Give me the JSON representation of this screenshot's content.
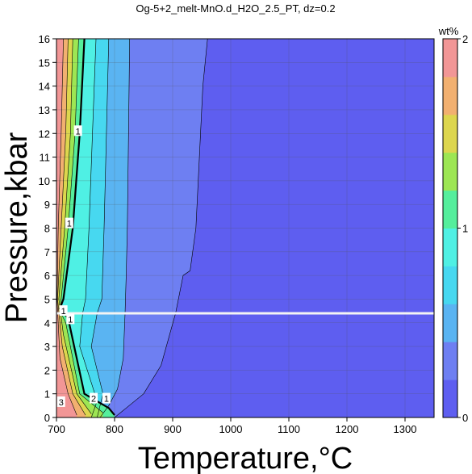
{
  "chart_data": {
    "type": "heatmap",
    "title": "Og-5+2_melt-MnO.d_H2O_2.5_PT, dz=0.2",
    "xlabel": "Temperature,°C",
    "ylabel": "Pressure,kbar",
    "xlim": [
      700,
      1350
    ],
    "ylim": [
      0,
      16
    ],
    "xticks": [
      700,
      800,
      900,
      1000,
      1100,
      1200,
      1300
    ],
    "yticks": [
      0,
      1,
      2,
      3,
      4,
      5,
      6,
      7,
      8,
      9,
      10,
      11,
      12,
      13,
      14,
      15,
      16
    ],
    "grid": true,
    "colorbar": {
      "label": "wt%",
      "range": [
        0,
        2
      ],
      "step": 0.2,
      "ticks": [
        0,
        1,
        2
      ],
      "colors": [
        "#5e5ef0",
        "#6e7ff2",
        "#5ab4f2",
        "#47d8f0",
        "#4ff0e4",
        "#55ee9c",
        "#9de653",
        "#ddd64e",
        "#f2b070",
        "#f29696"
      ]
    },
    "contour_labels": [
      {
        "text": "1",
        "x": 737,
        "y": 12.1
      },
      {
        "text": "1",
        "x": 722,
        "y": 8.2
      },
      {
        "text": "1",
        "x": 712,
        "y": 4.5
      },
      {
        "text": "1",
        "x": 724,
        "y": 4.15
      },
      {
        "text": "1",
        "x": 786,
        "y": 0.8
      },
      {
        "text": "2",
        "x": 764,
        "y": 0.8
      },
      {
        "text": "3",
        "x": 708,
        "y": 0.65
      }
    ],
    "gap_line_pressure": 4.4,
    "contours_wt": [
      {
        "level": 0.2,
        "T_at_P": [
          [
            960,
            16
          ],
          [
            952,
            14
          ],
          [
            946,
            11
          ],
          [
            940,
            8
          ],
          [
            930,
            6.2
          ],
          [
            918,
            6
          ],
          [
            905,
            4.4
          ],
          [
            880,
            2.2
          ],
          [
            850,
            1
          ],
          [
            820,
            0.4
          ],
          [
            800,
            0
          ]
        ]
      },
      {
        "level": 0.4,
        "T_at_P": [
          [
            826,
            16
          ],
          [
            824,
            12
          ],
          [
            822,
            8
          ],
          [
            820,
            6
          ],
          [
            818,
            4.4
          ],
          [
            815,
            2.5
          ],
          [
            805,
            1.2
          ],
          [
            790,
            0.5
          ],
          [
            775,
            0
          ]
        ]
      },
      {
        "level": 0.6,
        "T_at_P": [
          [
            790,
            16
          ],
          [
            786,
            12
          ],
          [
            782,
            8
          ],
          [
            778,
            5
          ],
          [
            770,
            4.4
          ],
          [
            760,
            3
          ],
          [
            780,
            1
          ],
          [
            770,
            0
          ]
        ]
      },
      {
        "level": 0.8,
        "T_at_P": [
          [
            768,
            16
          ],
          [
            762,
            12
          ],
          [
            756,
            8
          ],
          [
            750,
            5
          ],
          [
            745,
            4.4
          ],
          [
            740,
            3
          ],
          [
            770,
            0.7
          ],
          [
            760,
            0
          ]
        ]
      },
      {
        "level": 1.0,
        "T_at_P": [
          [
            748,
            16
          ],
          [
            740,
            12
          ],
          [
            728,
            8
          ],
          [
            712,
            5
          ],
          [
            706,
            4.6
          ],
          [
            720,
            4.2
          ],
          [
            748,
            1
          ],
          [
            790,
            0.4
          ],
          [
            800,
            0.1
          ]
        ]
      },
      {
        "level": 1.2,
        "T_at_P": [
          [
            738,
            16
          ],
          [
            732,
            12
          ],
          [
            720,
            8
          ],
          [
            708,
            5
          ],
          [
            706,
            4.5
          ],
          [
            716,
            4
          ],
          [
            740,
            1
          ],
          [
            780,
            0.2
          ]
        ]
      },
      {
        "level": 1.4,
        "T_at_P": [
          [
            728,
            16
          ],
          [
            724,
            12
          ],
          [
            714,
            8
          ],
          [
            704,
            5
          ],
          [
            712,
            3.5
          ],
          [
            735,
            1
          ],
          [
            760,
            0.15
          ]
        ]
      },
      {
        "level": 1.6,
        "T_at_P": [
          [
            720,
            16
          ],
          [
            716,
            12
          ],
          [
            708,
            8
          ],
          [
            702,
            5
          ],
          [
            710,
            3
          ],
          [
            728,
            1
          ],
          [
            750,
            0.1
          ]
        ]
      },
      {
        "level": 1.8,
        "T_at_P": [
          [
            712,
            16
          ],
          [
            708,
            12
          ],
          [
            703,
            8
          ],
          [
            701,
            5
          ],
          [
            706,
            2.5
          ],
          [
            720,
            1
          ],
          [
            735,
            0.1
          ]
        ]
      }
    ]
  }
}
